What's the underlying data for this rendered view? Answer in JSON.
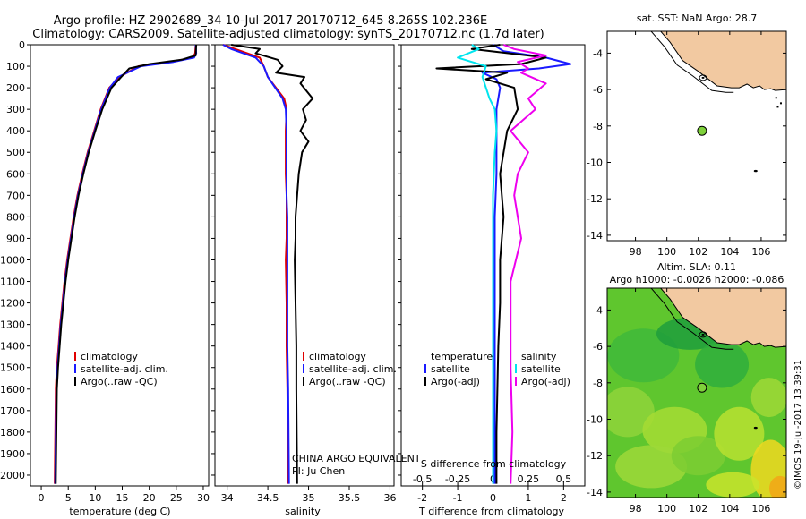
{
  "figure": {
    "title_line1": "Argo profile: HZ 2902689_34 10-Jul-2017 20170712_645 8.265S 102.236E",
    "title_line2": "Climatology: CARS2009. Satellite-adjusted climatology: synTS_20170712.nc (1.7d later)",
    "timestamp": "©IMOS 19-Jul-2017 13:39:31",
    "colors": {
      "climatology": "#e00000",
      "satellite": "#1a1aff",
      "argo": "#000000",
      "sat_diff": "#00e5ee",
      "argo_diff": "#ee00ee",
      "land": "#f2c9a1",
      "float_marker": "#7fd13b"
    }
  },
  "chart_data": [
    {
      "type": "line",
      "panel": "temperature",
      "xlabel": "temperature (deg C)",
      "xlim": [
        -2,
        31
      ],
      "xticks": [
        0,
        5,
        10,
        15,
        20,
        25,
        30
      ],
      "ylim": [
        2050,
        0
      ],
      "yticks": [
        0,
        100,
        200,
        300,
        400,
        500,
        600,
        700,
        800,
        900,
        1000,
        1100,
        1200,
        1300,
        1400,
        1500,
        1600,
        1700,
        1800,
        1900,
        2000
      ],
      "legend": [
        "climatology",
        "satellite-adj. clim.",
        "Argo(..raw -QC)"
      ],
      "series": [
        {
          "name": "climatology",
          "color": "#e00000",
          "x": [
            28.6,
            28.5,
            28.0,
            24,
            18,
            14.5,
            12.6,
            11.0,
            9.8,
            8.6,
            7.6,
            6.7,
            6.0,
            5.4,
            4.8,
            4.3,
            3.9,
            3.5,
            3.2,
            2.9,
            2.7,
            2.5
          ],
          "y": [
            0,
            40,
            60,
            80,
            100,
            150,
            200,
            300,
            400,
            500,
            600,
            700,
            800,
            900,
            1000,
            1100,
            1200,
            1300,
            1400,
            1500,
            1600,
            2040
          ]
        },
        {
          "name": "satellite-adj. clim.",
          "color": "#1a1aff",
          "x": [
            28.6,
            28.7,
            28.3,
            24.5,
            18.5,
            14.2,
            12.7,
            11.1,
            9.9,
            8.7,
            7.7,
            6.8,
            6.1,
            5.5,
            4.9,
            4.4,
            4.0,
            3.6,
            3.3,
            3.0,
            2.8,
            2.6
          ],
          "y": [
            0,
            40,
            60,
            80,
            100,
            150,
            200,
            300,
            400,
            500,
            600,
            700,
            800,
            900,
            1000,
            1100,
            1200,
            1300,
            1400,
            1500,
            1600,
            2040
          ]
        },
        {
          "name": "Argo(..raw -QC)",
          "color": "#000000",
          "x": [
            28.7,
            28.6,
            26,
            20,
            16.3,
            14.8,
            13.0,
            11.3,
            10.0,
            8.8,
            7.8,
            6.9,
            6.2,
            5.6,
            5.0,
            4.5,
            4.1,
            3.7,
            3.4,
            3.1,
            2.9,
            2.7
          ],
          "y": [
            0,
            50,
            70,
            90,
            110,
            150,
            200,
            300,
            400,
            500,
            600,
            700,
            800,
            900,
            1000,
            1100,
            1200,
            1300,
            1400,
            1500,
            1600,
            2040
          ]
        }
      ]
    },
    {
      "type": "line",
      "panel": "salinity",
      "xlabel": "salinity",
      "xlim": [
        33.85,
        36.05
      ],
      "xticks": [
        34,
        34.5,
        35,
        35.5,
        36
      ],
      "ylim": [
        2050,
        0
      ],
      "legend": [
        "climatology",
        "satellite-adj. clim.",
        "Argo(..raw -QC)"
      ],
      "annotation_line1": "CHINA ARGO EQUIVALENT",
      "annotation_line2": "PI: Ju Chen",
      "series": [
        {
          "name": "climatology",
          "color": "#e00000",
          "x": [
            33.95,
            34.1,
            34.4,
            34.45,
            34.5,
            34.7,
            34.73,
            34.72,
            34.72,
            34.72,
            34.73,
            34.73,
            34.73,
            34.72,
            34.73,
            34.73,
            34.74,
            34.75
          ],
          "y": [
            0,
            20,
            60,
            100,
            150,
            250,
            300,
            400,
            500,
            600,
            700,
            800,
            900,
            1000,
            1200,
            1400,
            1600,
            2040
          ]
        },
        {
          "name": "satellite-adj. clim.",
          "color": "#1a1aff",
          "x": [
            33.95,
            34.05,
            34.35,
            34.45,
            34.5,
            34.68,
            34.72,
            34.73,
            34.73,
            34.73,
            34.73,
            34.74,
            34.74,
            34.74,
            34.74,
            34.74,
            34.75,
            34.76
          ],
          "y": [
            0,
            20,
            60,
            100,
            150,
            250,
            300,
            400,
            500,
            600,
            700,
            800,
            900,
            1000,
            1200,
            1400,
            1600,
            2040
          ]
        },
        {
          "name": "Argo(..raw -QC)",
          "color": "#000000",
          "x": [
            34.05,
            34.4,
            34.35,
            34.62,
            34.68,
            34.6,
            34.95,
            34.9,
            35.05,
            34.93,
            34.97,
            34.9,
            35.0,
            34.92,
            34.88,
            34.86,
            34.84,
            34.84,
            34.83,
            34.85,
            34.85,
            34.86
          ],
          "y": [
            0,
            20,
            40,
            70,
            100,
            130,
            150,
            180,
            250,
            300,
            350,
            400,
            450,
            500,
            600,
            700,
            800,
            900,
            1000,
            1400,
            1600,
            2040
          ]
        }
      ]
    },
    {
      "type": "line",
      "panel": "difference",
      "xlabel_bottom": "T difference from climatology",
      "xlabel_top": "S difference from climatology",
      "xlim": [
        -2.6,
        2.6
      ],
      "xticks": [
        -2,
        -1,
        0,
        1,
        2
      ],
      "s_tick_labels": [
        "-0.5",
        "-0.25",
        "0",
        "0.25",
        "0.5"
      ],
      "ylim": [
        2050,
        0
      ],
      "legend_temperature": {
        "header": "temperature",
        "items": [
          "satellite",
          "Argo(-adj)"
        ]
      },
      "legend_salinity": {
        "header": "salinity",
        "items": [
          "satellite",
          "Argo(-adj)"
        ]
      },
      "series": [
        {
          "name": "temperature satellite",
          "color": "#1a1aff",
          "x": [
            0,
            0.3,
            1.5,
            2.2,
            1.3,
            -0.3,
            0.1,
            0.2,
            0.1,
            0.1,
            0.1,
            0.05,
            0.05,
            0.05,
            0.05,
            0.05,
            0.05
          ],
          "y": [
            0,
            30,
            60,
            90,
            110,
            130,
            160,
            200,
            300,
            400,
            600,
            800,
            1000,
            1200,
            1400,
            1800,
            2040
          ]
        },
        {
          "name": "temperature Argo(-adj)",
          "color": "#000000",
          "x": [
            0.2,
            -0.6,
            1.5,
            0.8,
            -1.6,
            0.4,
            -0.2,
            0.6,
            0.7,
            0.4,
            0.2,
            0.3,
            0.2,
            0.2,
            0.15,
            0.1,
            0.1
          ],
          "y": [
            0,
            20,
            60,
            90,
            110,
            130,
            160,
            200,
            300,
            400,
            600,
            800,
            1000,
            1200,
            1400,
            1800,
            2040
          ]
        },
        {
          "name": "salinity satellite",
          "color": "#00e5ee",
          "x": [
            -0.6,
            -0.4,
            -1.0,
            -0.2,
            -0.3,
            -0.1,
            0.05,
            0.1,
            0.05,
            0.0,
            0.0,
            0.0,
            0.0,
            0.0,
            0.0,
            0.0
          ],
          "y": [
            0,
            20,
            60,
            100,
            150,
            250,
            300,
            400,
            500,
            700,
            900,
            1100,
            1300,
            1500,
            1800,
            2040
          ]
        },
        {
          "name": "salinity Argo(-adj)",
          "color": "#ee00ee",
          "x": [
            0.3,
            0.6,
            1.5,
            0.7,
            1.0,
            0.8,
            1.5,
            1.0,
            1.2,
            0.5,
            1.0,
            0.7,
            0.6,
            0.8,
            0.5,
            0.5,
            0.5,
            0.55,
            0.5
          ],
          "y": [
            0,
            20,
            50,
            80,
            110,
            130,
            180,
            250,
            300,
            400,
            500,
            600,
            700,
            900,
            1100,
            1300,
            1500,
            1800,
            2040
          ]
        }
      ]
    },
    {
      "type": "map",
      "panel": "sst_map",
      "title": "sat. SST: NaN Argo: 28.7",
      "xlim": [
        96.2,
        107.6
      ],
      "ylim": [
        -14.3,
        -2.8
      ],
      "xticks": [
        98,
        100,
        102,
        104,
        106
      ],
      "yticks": [
        -4,
        -6,
        -8,
        -10,
        -12,
        -14
      ],
      "float_position": {
        "lon": 102.236,
        "lat": -8.265
      }
    },
    {
      "type": "map",
      "panel": "sla_map",
      "title_line1": "Altim. SLA: 0.11",
      "title_line2": "Argo h1000: -0.0026 h2000: -0.086",
      "xlim": [
        96.2,
        107.6
      ],
      "ylim": [
        -14.3,
        -2.8
      ],
      "xticks": [
        98,
        100,
        102,
        104,
        106
      ],
      "yticks": [
        -4,
        -6,
        -8,
        -10,
        -12,
        -14
      ],
      "float_position": {
        "lon": 102.236,
        "lat": -8.265
      }
    }
  ]
}
